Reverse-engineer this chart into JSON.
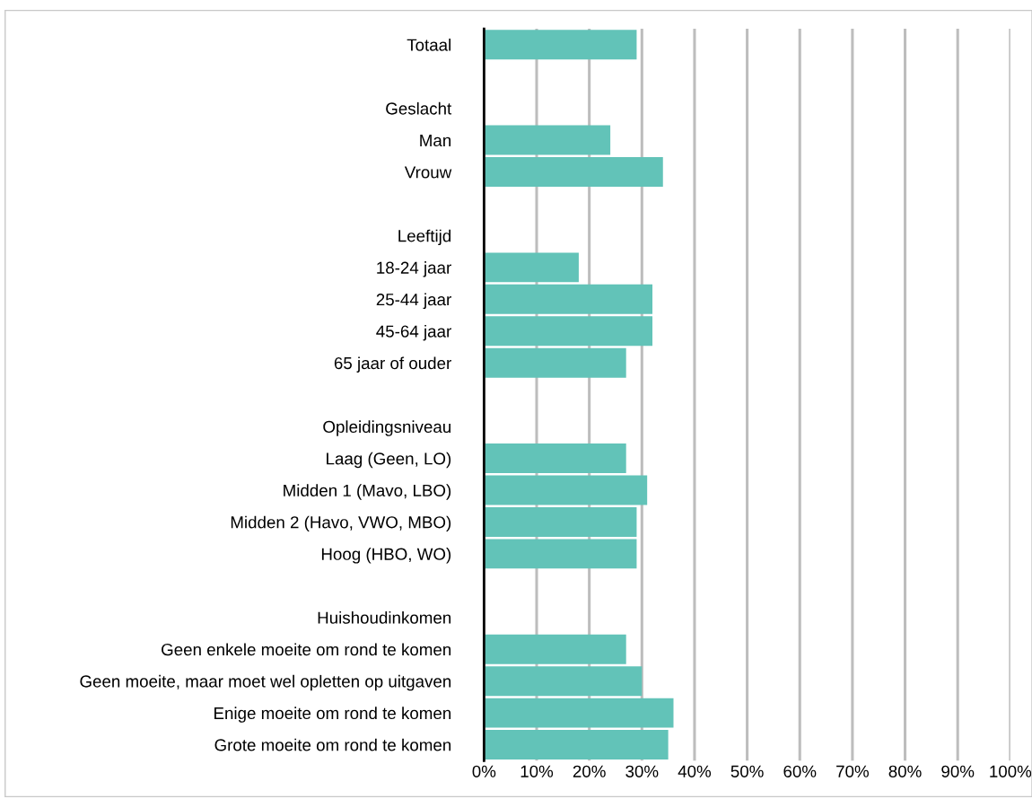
{
  "chart_data": {
    "type": "bar",
    "orientation": "horizontal",
    "color": "#62c3b8",
    "categories": [
      "Totaal",
      null,
      "Geslacht",
      "Man",
      "Vrouw",
      null,
      "Leeftijd",
      "18-24 jaar",
      "25-44 jaar",
      "45-64 jaar",
      "65 jaar of ouder",
      null,
      "Opleidingsniveau",
      "Laag (Geen, LO)",
      "Midden 1 (Mavo, LBO)",
      "Midden 2 (Havo, VWO, MBO)",
      "Hoog (HBO, WO)",
      null,
      "Huishoudinkomen",
      "Geen enkele moeite om rond te komen",
      "Geen moeite, maar moet wel opletten op uitgaven",
      "Enige moeite om rond te komen",
      "Grote moeite om rond te komen"
    ],
    "values": [
      29,
      null,
      null,
      24,
      34,
      null,
      null,
      18,
      32,
      32,
      27,
      null,
      null,
      27,
      31,
      29,
      29,
      null,
      null,
      27,
      30,
      36,
      35
    ],
    "xlim": [
      0,
      100
    ],
    "xticks": [
      {
        "value": 0,
        "label": "0%"
      },
      {
        "value": 10,
        "label": "10%"
      },
      {
        "value": 20,
        "label": "20%"
      },
      {
        "value": 30,
        "label": "30%"
      },
      {
        "value": 40,
        "label": "40%"
      },
      {
        "value": 50,
        "label": "50%"
      },
      {
        "value": 60,
        "label": "60%"
      },
      {
        "value": 70,
        "label": "70%"
      },
      {
        "value": 80,
        "label": "80%"
      },
      {
        "value": 90,
        "label": "90%"
      },
      {
        "value": 100,
        "label": "100%"
      }
    ],
    "grid": "x"
  }
}
